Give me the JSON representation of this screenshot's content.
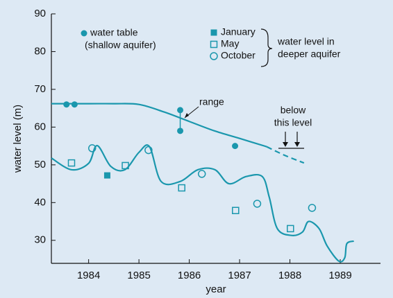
{
  "chart_data": {
    "type": "line",
    "ylabel": "water level (m)",
    "xlabel": "year",
    "xlim": [
      1983.26,
      1989.8
    ],
    "ylim": [
      23.9,
      90
    ],
    "xticks": [
      1984,
      1985,
      1986,
      1987,
      1988,
      1989
    ],
    "yticks": [
      30,
      40,
      50,
      60,
      70,
      80,
      90
    ],
    "series": [
      {
        "name": "water table",
        "color": "#1a97ad",
        "marker": "filled-circle",
        "x": [
          1983.56,
          1983.72,
          1985.82,
          1985.82,
          1986.91
        ],
        "values": [
          66,
          66,
          64.5,
          59,
          55
        ]
      },
      {
        "name": "January",
        "color": "#1a97ad",
        "marker": "filled-square",
        "x": [
          1984.37
        ],
        "values": [
          47.2
        ]
      },
      {
        "name": "May",
        "color": "#1a97ad",
        "marker": "open-square",
        "x": [
          1983.66,
          1984.73,
          1985.85,
          1986.92,
          1988.01
        ],
        "values": [
          50.5,
          49.8,
          43.9,
          37.9,
          33.1
        ]
      },
      {
        "name": "October",
        "color": "#1a97ad",
        "marker": "open-circle",
        "x": [
          1984.07,
          1985.19,
          1986.25,
          1987.35,
          1988.44
        ],
        "values": [
          54.4,
          53.9,
          47.6,
          39.7,
          38.6
        ]
      }
    ],
    "lines": [
      {
        "color": "#1a97ad",
        "dashed": false,
        "x": [
          1983.26,
          1984,
          1984.5,
          1985,
          1985.5,
          1986,
          1986.5,
          1987,
          1987.54
        ],
        "values": [
          66.2,
          66.2,
          66.2,
          66,
          64,
          61.5,
          59,
          57,
          54.8
        ]
      },
      {
        "color": "#1a97ad",
        "dashed": true,
        "x": [
          1987.54,
          1987.9,
          1988.28
        ],
        "values": [
          54.8,
          52.5,
          50.5
        ]
      },
      {
        "color": "#1a97ad",
        "dashed": false,
        "x": [
          1983.26,
          1983.66,
          1984.0,
          1984.17,
          1984.44,
          1984.72,
          1985.0,
          1985.21,
          1985.44,
          1985.82,
          1986.17,
          1986.51,
          1986.79,
          1987.13,
          1987.45,
          1987.59,
          1987.75,
          1988.03,
          1988.25,
          1988.37,
          1988.58,
          1988.74,
          1988.97,
          1989.09,
          1989.13,
          1989.27
        ],
        "values": [
          51.8,
          48.7,
          50.4,
          55.1,
          49.6,
          48.7,
          53.3,
          54.8,
          45.6,
          45.6,
          48.7,
          48.7,
          45.0,
          46.9,
          46.9,
          41.4,
          33.1,
          31.3,
          32.2,
          35.0,
          33.1,
          28.5,
          24.5,
          25.4,
          29.1,
          29.8
        ]
      }
    ],
    "legend_note": "(shallow aquifer)",
    "legend_group": [
      "water level in",
      "deeper aquifer"
    ],
    "annotations": {
      "range": "range",
      "below": [
        "below",
        "this level"
      ]
    }
  }
}
